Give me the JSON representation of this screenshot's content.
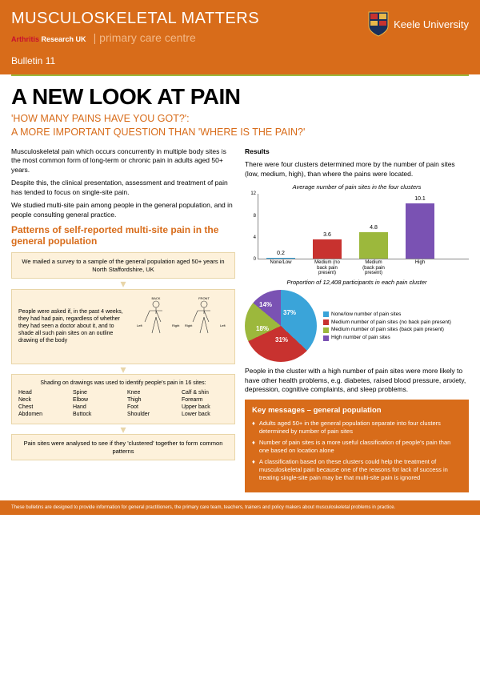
{
  "header": {
    "title": "MUSCULOSKELETAL MATTERS",
    "aruk_prefix": "Arthritis",
    "aruk_suffix": "Research UK",
    "pcc": "primary care centre",
    "bulletin": "Bulletin 11",
    "keele": "Keele University"
  },
  "main": {
    "h1": "A NEW LOOK AT PAIN",
    "sub1": "'HOW MANY PAINS HAVE YOU GOT?':",
    "sub2": "A MORE IMPORTANT QUESTION THAN 'WHERE IS THE PAIN?'"
  },
  "intro": {
    "p1": "Musculoskeletal pain which occurs concurrently in multiple body sites is the most common form of long-term or chronic pain in adults aged 50+ years.",
    "p2": "Despite this, the clinical presentation, assessment and treatment of pain has tended to focus on single-site pain.",
    "p3": "We studied multi-site pain among people in the general population, and in people consulting general practice.",
    "patterns_head": "Patterns of self-reported multi-site pain in the general population"
  },
  "flow": {
    "b1": "We mailed a survey to a sample of the general population aged 50+ years in North Staffordshire, UK",
    "b2": "People were asked if, in the past 4 weeks, they had had pain, regardless of whether they had seen a doctor about it, and to shade all such pain sites on an outline drawing of the body",
    "b3_intro": "Shading on drawings was used to identify people's pain in 16 sites:",
    "b4": "Pain sites were analysed to see if they 'clustered' together to form common patterns",
    "sites": {
      "c1": [
        "Head",
        "Neck",
        "Chest",
        "Abdomen"
      ],
      "c2": [
        "Spine",
        "Elbow",
        "Hand",
        "Buttock"
      ],
      "c3": [
        "Knee",
        "Thigh",
        "Foot",
        "Shoulder"
      ],
      "c4": [
        "Calf & shin",
        "Forearm",
        "Upper back",
        "Lower back"
      ]
    },
    "body_labels": {
      "back": "BACK",
      "front": "FRONT",
      "left": "Left",
      "right": "Right"
    }
  },
  "results": {
    "head": "Results",
    "intro": "There were four clusters determined more by the number of pain sites (low, medium, high), than where the pains were located.",
    "bar": {
      "title": "Average number of pain sites in the four clusters",
      "ymax": 12,
      "ytick_step": 4,
      "categories": [
        "None/Low",
        "Medium (no back pain present)",
        "Medium (back pain present)",
        "High"
      ],
      "values": [
        0.2,
        3.6,
        4.8,
        10.1
      ],
      "colors": [
        "#3aa4d9",
        "#c8322f",
        "#9cb83c",
        "#7a52b3"
      ]
    },
    "pie": {
      "title": "Proportion of 12,408 participants in each pain cluster",
      "slices": [
        {
          "label": "None/low number of pain sites",
          "value": 37,
          "color": "#3aa4d9"
        },
        {
          "label": "Medium number of pain sites (no back pain present)",
          "value": 31,
          "color": "#c8322f"
        },
        {
          "label": "Medium number of pain sites (back pain present)",
          "value": 18,
          "color": "#9cb83c"
        },
        {
          "label": "High number of pain sites",
          "value": 14,
          "color": "#7a52b3"
        }
      ]
    },
    "cluster_note": "People in the cluster with a high number of pain sites were more likely to have other health problems, e.g. diabetes, raised blood pressure, anxiety, depression, cognitive complaints, and sleep problems."
  },
  "key": {
    "head": "Key messages – general population",
    "items": [
      "Adults aged 50+ in the general population separate into four clusters determined by number of pain sites",
      "Number of pain sites is a more useful classification of people's pain than one based on location alone",
      "A classification based on these clusters could help the treatment of musculoskeletal pain because one of the reasons for lack of success in treating single-site pain may be that multi-site pain is ignored"
    ]
  },
  "footer": "These bulletins are designed to provide information for general practitioners, the primary care team, teachers, trainers and policy makers about musculoskeletal problems in practice."
}
